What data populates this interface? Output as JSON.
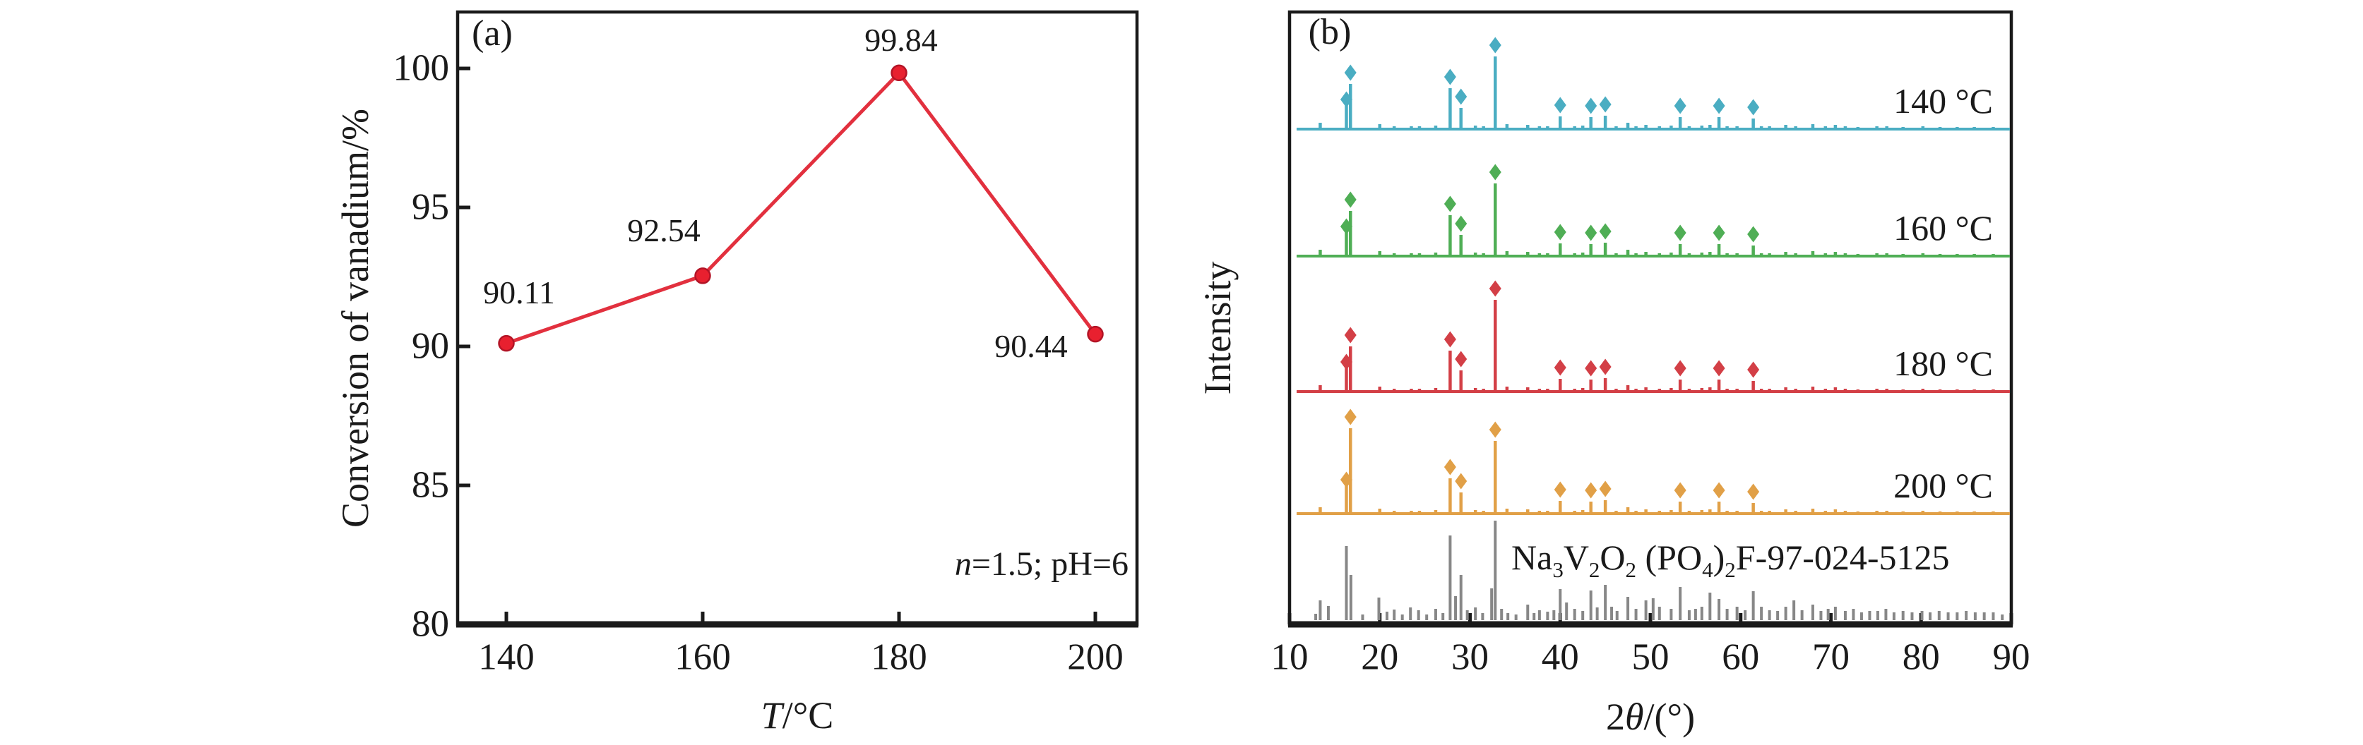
{
  "figure": {
    "background": "#ffffff",
    "text_color": "#1a1a1a"
  },
  "chart_data": [
    {
      "type": "line",
      "panel_tag": "(a)",
      "ylabel": "Conversion of vanadium/%",
      "xlabel_parts": [
        {
          "t": "T",
          "i": true
        },
        {
          "t": "/°C"
        }
      ],
      "annotation_parts": [
        {
          "t": "n",
          "i": true
        },
        {
          "t": "=1.5; pH=6"
        }
      ],
      "x": [
        140,
        160,
        180,
        200
      ],
      "values": [
        90.11,
        92.54,
        99.84,
        90.44
      ],
      "point_labels": [
        "90.11",
        "92.54",
        "99.84",
        "90.44"
      ],
      "x_ticks": [
        140,
        160,
        180,
        200
      ],
      "y_ticks": [
        80,
        85,
        90,
        95,
        100
      ],
      "xlim": [
        135,
        205
      ],
      "ylim": [
        80,
        102
      ],
      "grid": false,
      "line_color": "#e2303e",
      "marker_fill": "#e8202f",
      "marker_edge": "#b31426"
    },
    {
      "type": "line",
      "subtype": "xrd-stacked-patterns",
      "panel_tag": "(b)",
      "ylabel": "Intensity",
      "xlabel_parts": [
        {
          "t": "2"
        },
        {
          "t": "θ",
          "i": true
        },
        {
          "t": "/(°)"
        }
      ],
      "x_ticks": [
        10,
        20,
        30,
        40,
        50,
        60,
        70,
        80,
        90
      ],
      "xlim": [
        10,
        90
      ],
      "grid": false,
      "series": [
        {
          "name": "140 °C",
          "color": "#4aadc2",
          "overrides": {}
        },
        {
          "name": "160 °C",
          "color": "#4fae55",
          "overrides": {}
        },
        {
          "name": "180 °C",
          "color": "#d33f46",
          "overrides": {
            "32.8": 130
          }
        },
        {
          "name": "200 °C",
          "color": "#e1a047",
          "overrides": {
            "16.3": 46,
            "16.75": 121,
            "27.8": 50
          }
        }
      ],
      "peaks_2theta_height_marker": [
        [
          13.4,
          9,
          0
        ],
        [
          16.3,
          40,
          2
        ],
        [
          16.75,
          64,
          1
        ],
        [
          20.0,
          7,
          0
        ],
        [
          21.6,
          4,
          0
        ],
        [
          23.5,
          4,
          0
        ],
        [
          24.4,
          4,
          0
        ],
        [
          26.2,
          5,
          0
        ],
        [
          27.8,
          58,
          1
        ],
        [
          29.0,
          30,
          1
        ],
        [
          30.6,
          5,
          0
        ],
        [
          31.5,
          4,
          0
        ],
        [
          32.8,
          103,
          1
        ],
        [
          34.1,
          7,
          0
        ],
        [
          36.4,
          6,
          0
        ],
        [
          37.7,
          4,
          0
        ],
        [
          38.6,
          4,
          0
        ],
        [
          40.0,
          18,
          1
        ],
        [
          41.6,
          4,
          0
        ],
        [
          42.5,
          5,
          0
        ],
        [
          43.4,
          17,
          1
        ],
        [
          45.0,
          19,
          1
        ],
        [
          46.2,
          4,
          0
        ],
        [
          47.5,
          9,
          0
        ],
        [
          48.4,
          4,
          0
        ],
        [
          49.5,
          6,
          0
        ],
        [
          51.0,
          4,
          0
        ],
        [
          52.3,
          5,
          0
        ],
        [
          53.3,
          17,
          1
        ],
        [
          54.3,
          4,
          0
        ],
        [
          55.7,
          5,
          0
        ],
        [
          56.6,
          6,
          0
        ],
        [
          57.6,
          17,
          1
        ],
        [
          58.5,
          4,
          0
        ],
        [
          59.6,
          4,
          0
        ],
        [
          61.4,
          15,
          1
        ],
        [
          62.3,
          4,
          0
        ],
        [
          63.2,
          4,
          0
        ],
        [
          65.0,
          6,
          0
        ],
        [
          66.1,
          4,
          0
        ],
        [
          68.0,
          7,
          0
        ],
        [
          69.4,
          4,
          0
        ],
        [
          70.5,
          6,
          0
        ],
        [
          71.6,
          4,
          0
        ],
        [
          73.0,
          3,
          0
        ],
        [
          75.1,
          4,
          0
        ],
        [
          76.2,
          4,
          0
        ],
        [
          78.0,
          3,
          0
        ],
        [
          80.2,
          4,
          0
        ],
        [
          82.1,
          3,
          0
        ],
        [
          84.0,
          3,
          0
        ],
        [
          85.9,
          3,
          0
        ],
        [
          88.0,
          3,
          0
        ]
      ],
      "reference": {
        "label_parts": [
          {
            "t": "Na"
          },
          {
            "t": "3",
            "sub": true
          },
          {
            "t": "V"
          },
          {
            "t": "2",
            "sub": true
          },
          {
            "t": "O"
          },
          {
            "t": "2",
            "sub": true
          },
          {
            "t": " (PO"
          },
          {
            "t": "4",
            "sub": true
          },
          {
            "t": ")"
          },
          {
            "t": "2",
            "sub": true
          },
          {
            "t": "F-97-024-5125"
          }
        ],
        "color": "#878787",
        "sticks_2theta_height": [
          [
            12.9,
            9
          ],
          [
            13.4,
            28
          ],
          [
            14.3,
            20
          ],
          [
            16.3,
            105
          ],
          [
            16.8,
            64
          ],
          [
            18.1,
            8
          ],
          [
            19.9,
            32
          ],
          [
            20.8,
            12
          ],
          [
            21.6,
            15
          ],
          [
            22.5,
            8
          ],
          [
            23.4,
            18
          ],
          [
            24.3,
            14
          ],
          [
            25.2,
            8
          ],
          [
            26.2,
            16
          ],
          [
            27.0,
            10
          ],
          [
            27.8,
            120
          ],
          [
            28.4,
            34
          ],
          [
            29.0,
            64
          ],
          [
            29.7,
            14
          ],
          [
            30.6,
            18
          ],
          [
            31.4,
            10
          ],
          [
            32.4,
            45
          ],
          [
            32.8,
            141
          ],
          [
            33.5,
            16
          ],
          [
            34.2,
            10
          ],
          [
            35.1,
            8
          ],
          [
            36.4,
            22
          ],
          [
            37.1,
            10
          ],
          [
            37.7,
            14
          ],
          [
            38.6,
            12
          ],
          [
            39.3,
            14
          ],
          [
            40.0,
            44
          ],
          [
            40.7,
            25
          ],
          [
            41.6,
            16
          ],
          [
            42.5,
            13
          ],
          [
            43.4,
            42
          ],
          [
            44.1,
            18
          ],
          [
            45.0,
            50
          ],
          [
            45.7,
            19
          ],
          [
            46.3,
            13
          ],
          [
            47.5,
            33
          ],
          [
            48.4,
            16
          ],
          [
            49.5,
            28
          ],
          [
            50.3,
            31
          ],
          [
            51.0,
            19
          ],
          [
            52.3,
            16
          ],
          [
            53.3,
            47
          ],
          [
            54.3,
            14
          ],
          [
            55.0,
            16
          ],
          [
            55.7,
            19
          ],
          [
            56.6,
            39
          ],
          [
            57.6,
            30
          ],
          [
            58.5,
            16
          ],
          [
            59.6,
            19
          ],
          [
            60.5,
            14
          ],
          [
            61.4,
            41
          ],
          [
            62.3,
            19
          ],
          [
            63.2,
            14
          ],
          [
            64.1,
            13
          ],
          [
            65.0,
            19
          ],
          [
            65.9,
            28
          ],
          [
            66.8,
            14
          ],
          [
            68.0,
            22
          ],
          [
            68.9,
            13
          ],
          [
            69.7,
            16
          ],
          [
            70.5,
            19
          ],
          [
            71.6,
            13
          ],
          [
            72.5,
            16
          ],
          [
            73.4,
            11
          ],
          [
            74.3,
            13
          ],
          [
            75.2,
            13
          ],
          [
            76.1,
            16
          ],
          [
            77.0,
            11
          ],
          [
            78.0,
            13
          ],
          [
            79.0,
            11
          ],
          [
            80.1,
            13
          ],
          [
            81.0,
            11
          ],
          [
            82.0,
            13
          ],
          [
            83.0,
            11
          ],
          [
            84.0,
            11
          ],
          [
            85.0,
            13
          ],
          [
            86.0,
            11
          ],
          [
            87.0,
            11
          ],
          [
            88.0,
            11
          ],
          [
            89.0,
            8
          ]
        ]
      }
    }
  ]
}
